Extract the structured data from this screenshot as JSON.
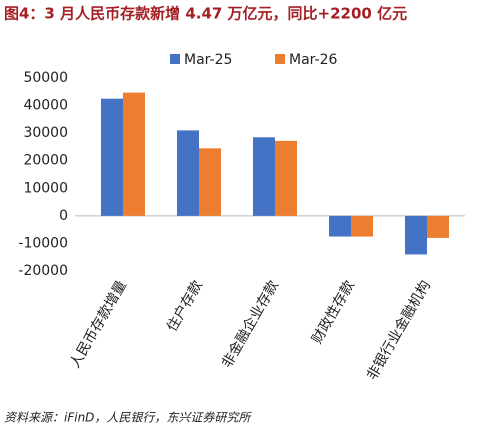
{
  "chart_data": {
    "type": "bar",
    "title": "图4：3 月人民币存款新增 4.47 万亿元，同比+2200 亿元",
    "categories": [
      "人民币存款增量",
      "住户存款",
      "非金融企业存款",
      "财政性存款",
      "非银行业金融机构"
    ],
    "series": [
      {
        "name": "Mar-25",
        "color": "#4472c4",
        "values": [
          42500,
          31000,
          28500,
          -7500,
          -14000
        ]
      },
      {
        "name": "Mar-26",
        "color": "#ed7d31",
        "values": [
          44700,
          24500,
          27200,
          -7500,
          -8000
        ]
      }
    ],
    "ylim": [
      -20000,
      50000
    ],
    "yticks": [
      -20000,
      -10000,
      0,
      10000,
      20000,
      30000,
      40000,
      50000
    ],
    "grid": false,
    "legend": "top",
    "source": "资料来源：iFinD，人民银行，东兴证券研究所"
  }
}
